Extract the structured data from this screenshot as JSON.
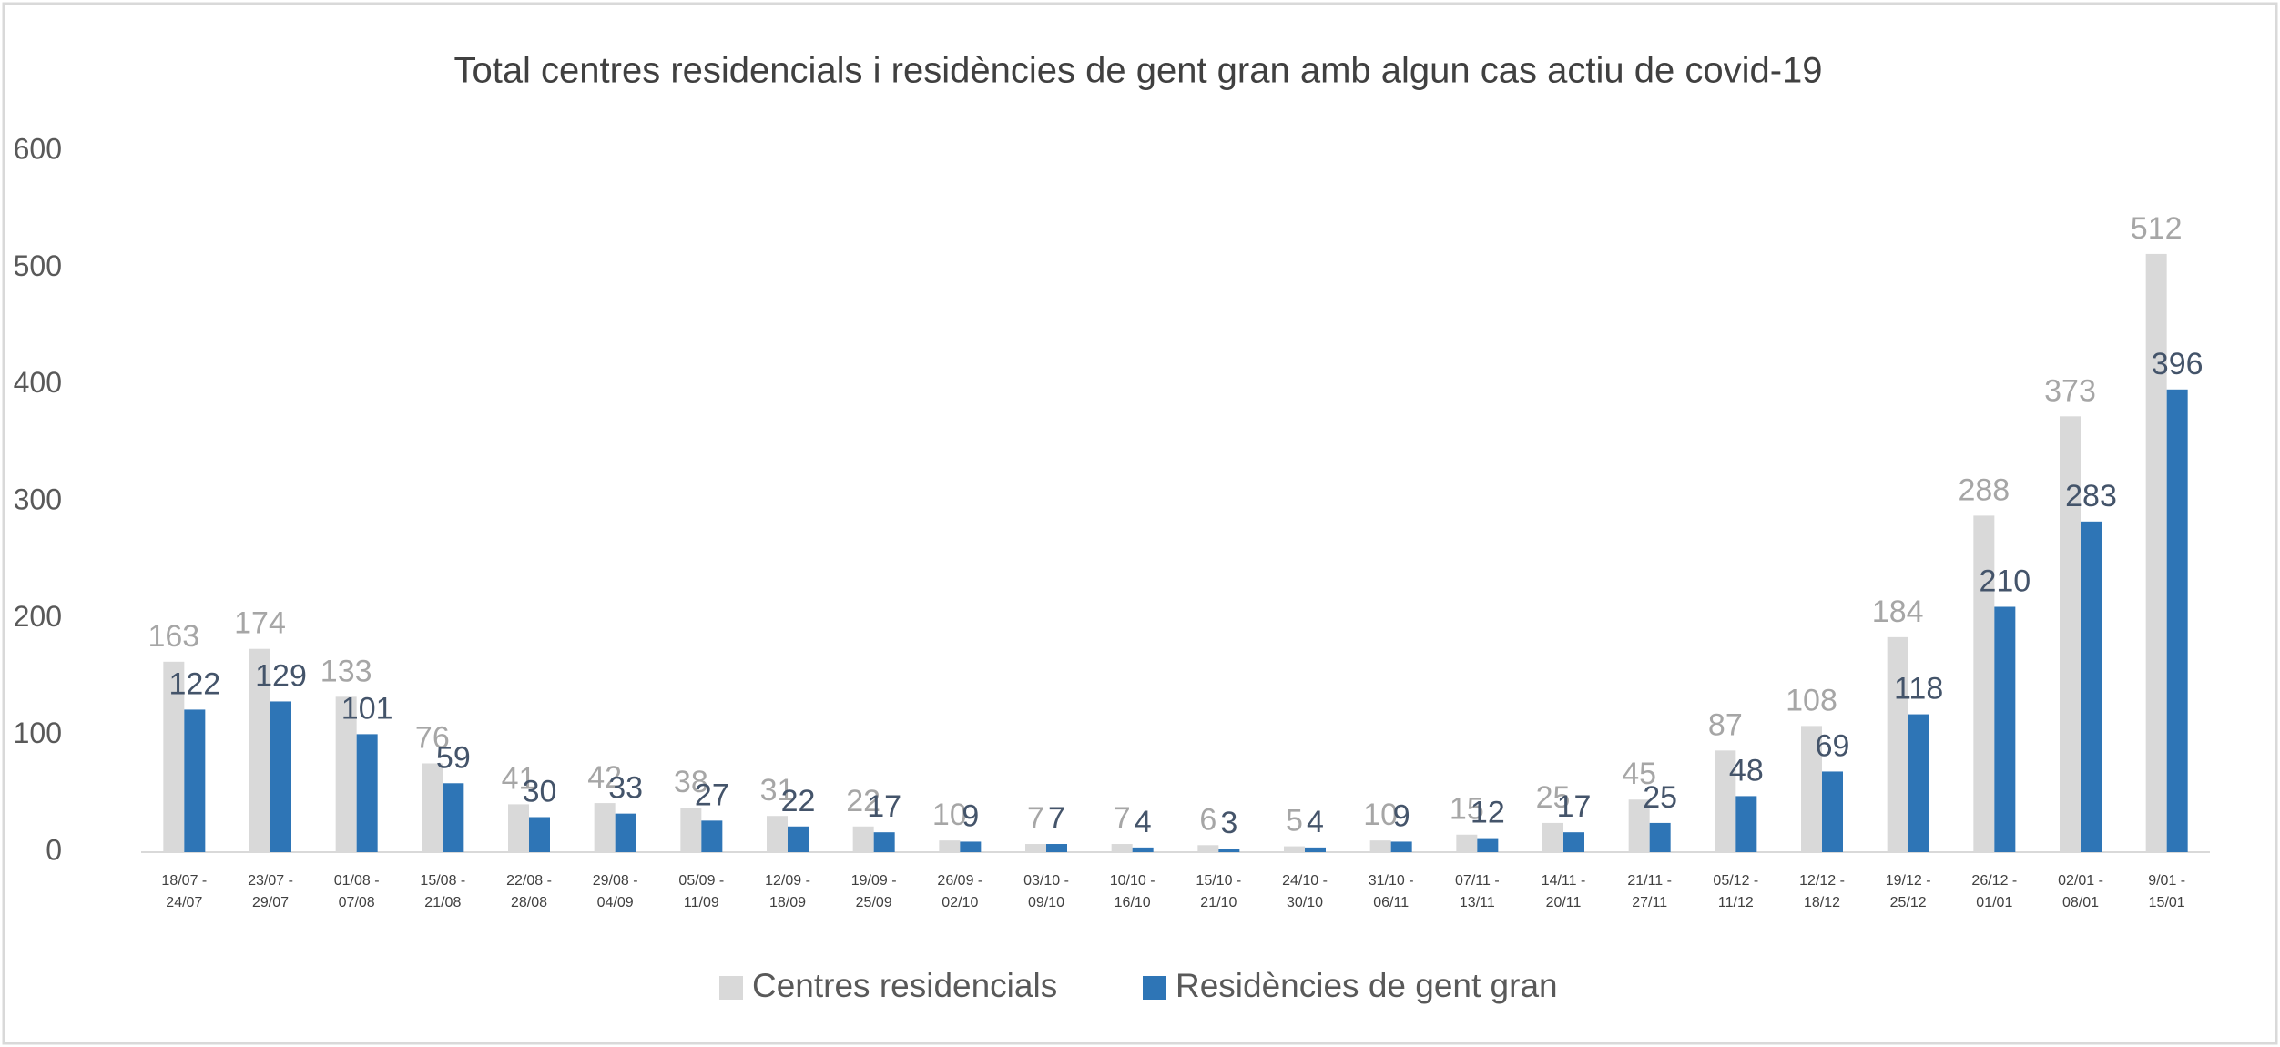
{
  "chart_data": {
    "type": "bar",
    "title": "Total centres residencials i residències de gent gran amb algun cas actiu de covid-19",
    "categories": [
      "18/07 - 24/07",
      "23/07 - 29/07",
      "01/08 - 07/08",
      "15/08 - 21/08",
      "22/08 - 28/08",
      "29/08 - 04/09",
      "05/09 - 11/09",
      "12/09 - 18/09",
      "19/09 - 25/09",
      "26/09 - 02/10",
      "03/10 - 09/10",
      "10/10 - 16/10",
      "15/10 - 21/10",
      "24/10 - 30/10",
      "31/10 - 06/11",
      "07/11 - 13/11",
      "14/11 - 20/11",
      "21/11 - 27/11",
      "05/12 - 11/12",
      "12/12 - 18/12",
      "19/12 - 25/12",
      "26/12 - 01/01",
      "02/01 - 08/01",
      "9/01 - 15/01"
    ],
    "series": [
      {
        "name": "Centres residencials",
        "color": "#d9d9d9",
        "label_color": "#a6a6a6",
        "values": [
          163,
          174,
          133,
          76,
          41,
          42,
          38,
          31,
          22,
          10,
          7,
          7,
          6,
          5,
          10,
          15,
          25,
          45,
          87,
          108,
          184,
          288,
          373,
          512
        ]
      },
      {
        "name": "Residències de gent gran",
        "color": "#2e75b6",
        "label_color": "#44546a",
        "values": [
          122,
          129,
          101,
          59,
          30,
          33,
          27,
          22,
          17,
          9,
          7,
          4,
          3,
          4,
          9,
          12,
          17,
          25,
          48,
          69,
          118,
          210,
          283,
          396
        ]
      }
    ],
    "ylim": [
      0,
      600
    ],
    "yticks": [
      0,
      100,
      200,
      300,
      400,
      500,
      600
    ],
    "grid": false,
    "legend": "bottom"
  }
}
